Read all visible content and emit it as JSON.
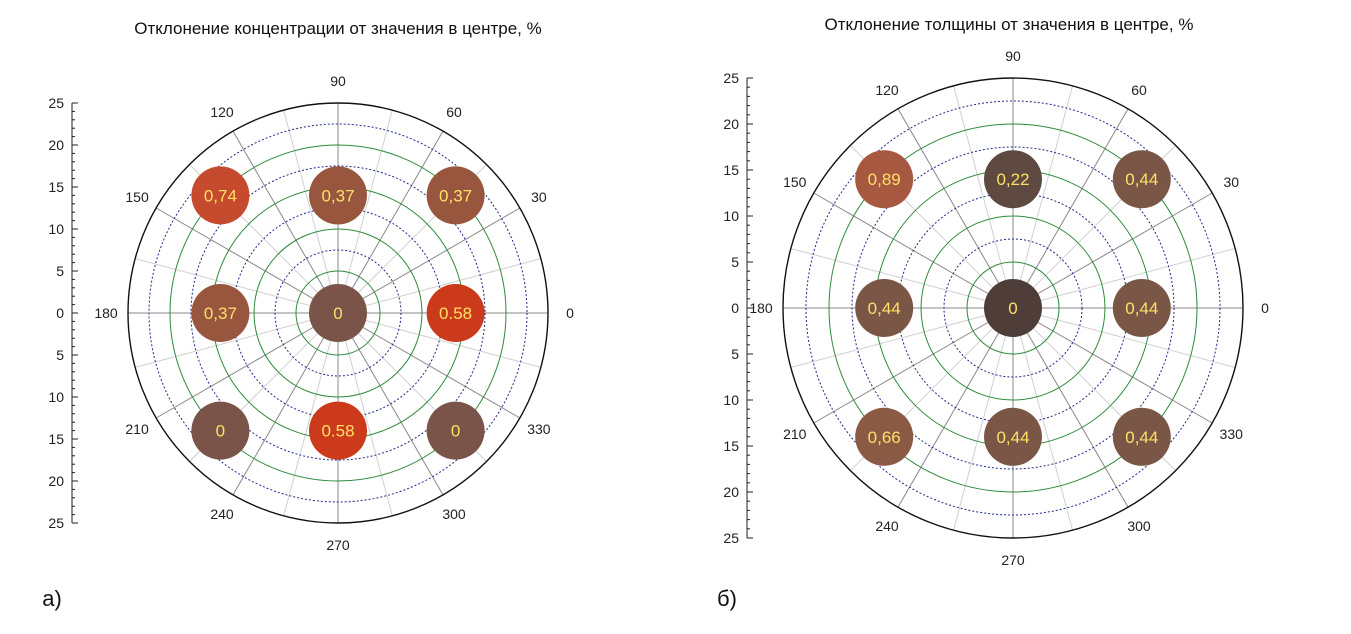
{
  "chart_data": [
    {
      "type": "scatter",
      "polar": true,
      "title": "Отклонение концентрации от значения в центре, %",
      "panel_label": "а)",
      "radial_axis": {
        "range": [
          0,
          25
        ],
        "tick_labels": [
          "25",
          "20",
          "15",
          "10",
          "5",
          "0",
          "5",
          "10",
          "15",
          "20",
          "25"
        ]
      },
      "angle_labels": [
        "0",
        "30",
        "60",
        "90",
        "120",
        "150",
        "180",
        "210",
        "240",
        "270",
        "300",
        "330"
      ],
      "grid": true,
      "points": [
        {
          "label": "0",
          "value": 0,
          "r": 0,
          "theta": 0,
          "color": "#7a5448"
        },
        {
          "label": "0.58",
          "value": 0.58,
          "r": 14,
          "theta": 0,
          "color": "#cc3a1c"
        },
        {
          "label": "0,37",
          "value": 0.37,
          "r": 14,
          "theta": 90,
          "color": "#98563f"
        },
        {
          "label": "0,37",
          "value": 0.37,
          "r": 14,
          "theta": 180,
          "color": "#98563f"
        },
        {
          "label": "0.58",
          "value": 0.58,
          "r": 14,
          "theta": 270,
          "color": "#cc3a1c"
        },
        {
          "label": "0,37",
          "value": 0.37,
          "r": 19.8,
          "theta": 45,
          "color": "#98563f"
        },
        {
          "label": "0,74",
          "value": 0.74,
          "r": 19.8,
          "theta": 135,
          "color": "#c64a2e"
        },
        {
          "label": "0",
          "value": 0,
          "r": 19.8,
          "theta": 225,
          "color": "#7a5448"
        },
        {
          "label": "0",
          "value": 0,
          "r": 19.8,
          "theta": 315,
          "color": "#7a5448"
        }
      ]
    },
    {
      "type": "scatter",
      "polar": true,
      "title": "Отклонение толщины от значения в центре, %",
      "panel_label": "б)",
      "radial_axis": {
        "range": [
          0,
          25
        ],
        "tick_labels": [
          "25",
          "20",
          "15",
          "10",
          "5",
          "0",
          "5",
          "10",
          "15",
          "20",
          "25"
        ]
      },
      "angle_labels": [
        "0",
        "30",
        "60",
        "90",
        "120",
        "150",
        "180",
        "210",
        "240",
        "270",
        "300",
        "330"
      ],
      "grid": true,
      "points": [
        {
          "label": "0",
          "value": 0,
          "r": 0,
          "theta": 0,
          "color": "#4e3d39"
        },
        {
          "label": "0,44",
          "value": 0.44,
          "r": 14,
          "theta": 0,
          "color": "#7a5647"
        },
        {
          "label": "0,22",
          "value": 0.22,
          "r": 14,
          "theta": 90,
          "color": "#5e4a40"
        },
        {
          "label": "0,44",
          "value": 0.44,
          "r": 14,
          "theta": 180,
          "color": "#7a5647"
        },
        {
          "label": "0,44",
          "value": 0.44,
          "r": 14,
          "theta": 270,
          "color": "#7a5647"
        },
        {
          "label": "0,44",
          "value": 0.44,
          "r": 19.8,
          "theta": 45,
          "color": "#7a5647"
        },
        {
          "label": "0,89",
          "value": 0.89,
          "r": 19.8,
          "theta": 135,
          "color": "#a65840"
        },
        {
          "label": "0,66",
          "value": 0.66,
          "r": 19.8,
          "theta": 225,
          "color": "#8b5a44"
        },
        {
          "label": "0,44",
          "value": 0.44,
          "r": 19.8,
          "theta": 315,
          "color": "#7a5647"
        }
      ]
    }
  ],
  "colors": {
    "grid_solid": "#2e8b3c",
    "grid_dotted": "#1f2a8a",
    "spoke": "#bbbbbb",
    "outline": "#111111"
  }
}
